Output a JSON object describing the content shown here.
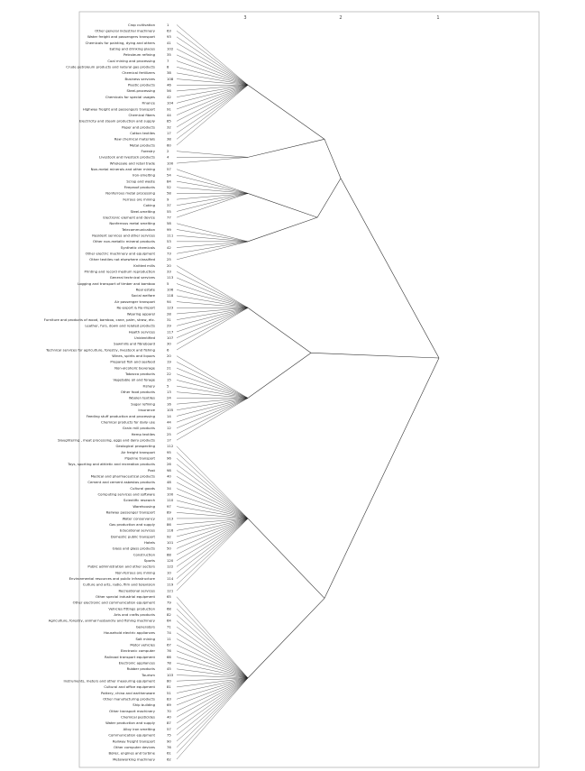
{
  "chart_data": {
    "type": "dendrogram",
    "title": "",
    "top_axis_ticks": [
      "3",
      "2",
      "1"
    ],
    "leaves": [
      {
        "label": "Crop cultivation",
        "code": "1",
        "cluster": 0
      },
      {
        "label": "Other general industrial machinery",
        "code": "63",
        "cluster": 0
      },
      {
        "label": "Water freight and passengers transport",
        "code": "93",
        "cluster": 0
      },
      {
        "label": "Chemicals for painting, dying and others",
        "code": "41",
        "cluster": 0
      },
      {
        "label": "Eating and drinking places",
        "code": "102",
        "cluster": 0
      },
      {
        "label": "Petroleum refining",
        "code": "35",
        "cluster": 0
      },
      {
        "label": "Coal mining and processing",
        "code": "7",
        "cluster": 0
      },
      {
        "label": "Crude petroleum products and natural gas products",
        "code": "8",
        "cluster": 0
      },
      {
        "label": "Chemical fertilizers",
        "code": "38",
        "cluster": 0
      },
      {
        "label": "Business services",
        "code": "108",
        "cluster": 0
      },
      {
        "label": "Plastic products",
        "code": "46",
        "cluster": 0
      },
      {
        "label": "Steel-processing",
        "code": "56",
        "cluster": 0
      },
      {
        "label": "Chemicals for special usages",
        "code": "42",
        "cluster": 0
      },
      {
        "label": "Finance",
        "code": "104",
        "cluster": 0
      },
      {
        "label": "Highway freight and passengers transport",
        "code": "91",
        "cluster": 0
      },
      {
        "label": "Chemical fibers",
        "code": "44",
        "cluster": 0
      },
      {
        "label": "Electricity and steam production and supply",
        "code": "85",
        "cluster": 0
      },
      {
        "label": "Paper and products",
        "code": "32",
        "cluster": 0
      },
      {
        "label": "Cotton textiles",
        "code": "17",
        "cluster": 0
      },
      {
        "label": "Raw chemical materials",
        "code": "38",
        "cluster": 0
      },
      {
        "label": "Metal products",
        "code": "60",
        "cluster": 0
      },
      {
        "label": "Forestry",
        "code": "2",
        "cluster": 1
      },
      {
        "label": "Livestock and livestock products",
        "code": "4",
        "cluster": 1
      },
      {
        "label": "Wholesale and retail trade",
        "code": "100",
        "cluster": 1
      },
      {
        "label": "Non-metal minerals and other mining",
        "code": "57",
        "cluster": 2
      },
      {
        "label": "Iron-smelting",
        "code": "54",
        "cluster": 2
      },
      {
        "label": "Scrap and waste",
        "code": "84",
        "cluster": 2
      },
      {
        "label": "Fireproof  products",
        "code": "52",
        "cluster": 2
      },
      {
        "label": "Nonferrous metal processing",
        "code": "58",
        "cluster": 2
      },
      {
        "label": "Ferrous ore mining",
        "code": "9",
        "cluster": 2
      },
      {
        "label": "Coking",
        "code": "37",
        "cluster": 2
      },
      {
        "label": "Steel-smelting",
        "code": "55",
        "cluster": 2
      },
      {
        "label": "Electronic element and device",
        "code": "77",
        "cluster": 2
      },
      {
        "label": "Nonferrous metal smelting",
        "code": "58",
        "cluster": 3
      },
      {
        "label": "Telecommunication",
        "code": "99",
        "cluster": 3
      },
      {
        "label": "Resident services and other services",
        "code": "111",
        "cluster": 3
      },
      {
        "label": "Other non-metallic mineral products",
        "code": "53",
        "cluster": 3
      },
      {
        "label": "Synthetic chemicals",
        "code": "42",
        "cluster": 3
      },
      {
        "label": "Other electric machinery and equipment",
        "code": "73",
        "cluster": 3
      },
      {
        "label": "Other textiles not elsewhere classified",
        "code": "25",
        "cluster": 3
      },
      {
        "label": "Knitted mills",
        "code": "20",
        "cluster": 4
      },
      {
        "label": "Printing and record medium reproduction",
        "code": "33",
        "cluster": 4
      },
      {
        "label": "General technical services",
        "code": "113",
        "cluster": 4
      },
      {
        "label": "Logging and transport of timber and bamboo",
        "code": "5",
        "cluster": 4
      },
      {
        "label": "Real estate",
        "code": "106",
        "cluster": 4
      },
      {
        "label": "Social welfare",
        "code": "118",
        "cluster": 4
      },
      {
        "label": "Air passenger transport",
        "code": "94",
        "cluster": 4
      },
      {
        "label": "Re-export & Re-import",
        "code": "123",
        "cluster": 4
      },
      {
        "label": "Wearing apparel",
        "code": "28",
        "cluster": 4
      },
      {
        "label": "Furniture and products of wood, bamboo, cane, palm, straw, etc.",
        "code": "31",
        "cluster": 4
      },
      {
        "label": "Leather, furs, down and related products",
        "code": "29",
        "cluster": 4
      },
      {
        "label": "Health services",
        "code": "117",
        "cluster": 4
      },
      {
        "label": "Unidentified",
        "code": "107",
        "cluster": 4
      },
      {
        "label": "Sawmills and fibreboard",
        "code": "30",
        "cluster": 4
      },
      {
        "label": "Technical services for agriculture, forestry, livestock and fishing",
        "code": "6",
        "cluster": 4
      },
      {
        "label": "Wines, spirits and liquors",
        "code": "20",
        "cluster": 5
      },
      {
        "label": "Prepared fish and seafood",
        "code": "19",
        "cluster": 5
      },
      {
        "label": "Non-alcoholic beverage",
        "code": "21",
        "cluster": 5
      },
      {
        "label": "Tobacco products",
        "code": "22",
        "cluster": 5
      },
      {
        "label": "Vegetable oil and forage",
        "code": "15",
        "cluster": 5
      },
      {
        "label": "Fishery",
        "code": "5",
        "cluster": 5
      },
      {
        "label": "Other food products",
        "code": "13",
        "cluster": 5
      },
      {
        "label": "Woolen textiles",
        "code": "24",
        "cluster": 5
      },
      {
        "label": "Sugar refining",
        "code": "16",
        "cluster": 5
      },
      {
        "label": "Insurance",
        "code": "105",
        "cluster": 5
      },
      {
        "label": "Feeding stuff production and processing",
        "code": "14",
        "cluster": 5
      },
      {
        "label": "Chemical products for daily use",
        "code": "44",
        "cluster": 5
      },
      {
        "label": "Grain mill products",
        "code": "12",
        "cluster": 5
      },
      {
        "label": "Hemp textiles",
        "code": "25",
        "cluster": 5
      },
      {
        "label": "Slaughtering , meat processing, eggs and dairy products",
        "code": "17",
        "cluster": 5
      },
      {
        "label": "Geological prospecting",
        "code": "112",
        "cluster": 6
      },
      {
        "label": "Air freight transport",
        "code": "95",
        "cluster": 6
      },
      {
        "label": "Pipeline transport",
        "code": "96",
        "cluster": 6
      },
      {
        "label": "Toys, sporting and athletic  and recreation products",
        "code": "26",
        "cluster": 6
      },
      {
        "label": "Post",
        "code": "98",
        "cluster": 6
      },
      {
        "label": "Medical and pharmaceutical products",
        "code": "40",
        "cluster": 6
      },
      {
        "label": "Cement and cement asbestos products",
        "code": "48",
        "cluster": 6
      },
      {
        "label": "Cultural goods",
        "code": "34",
        "cluster": 6
      },
      {
        "label": "Computing services and software",
        "code": "100",
        "cluster": 6
      },
      {
        "label": "Scientific research",
        "code": "110",
        "cluster": 6
      },
      {
        "label": "Warehousing",
        "code": "97",
        "cluster": 6
      },
      {
        "label": "Railway passenger transport",
        "code": "89",
        "cluster": 6
      },
      {
        "label": "Water conservancy",
        "code": "113",
        "cluster": 6
      },
      {
        "label": "Gas production and supply",
        "code": "86",
        "cluster": 6
      },
      {
        "label": "Educational services",
        "code": "116",
        "cluster": 6
      },
      {
        "label": "Domestic public transport",
        "code": "92",
        "cluster": 6
      },
      {
        "label": "Hotels",
        "code": "101",
        "cluster": 6
      },
      {
        "label": "Glass and glass products",
        "code": "50",
        "cluster": 6
      },
      {
        "label": "Construction",
        "code": "88",
        "cluster": 6
      },
      {
        "label": "Sports",
        "code": "120",
        "cluster": 6
      },
      {
        "label": "Public administration and other sectors",
        "code": "122",
        "cluster": 6
      },
      {
        "label": "Non-ferrous ore mining",
        "code": "10",
        "cluster": 6
      },
      {
        "label": "Environmental resources and public infrastructure",
        "code": "114",
        "cluster": 6
      },
      {
        "label": "Culture and arts, radio, film and television",
        "code": "119",
        "cluster": 6
      },
      {
        "label": "Recreational services",
        "code": "121",
        "cluster": 6
      },
      {
        "label": "Other special industrial equipment",
        "code": "65",
        "cluster": 7
      },
      {
        "label": "Other electronic and communication equipment",
        "code": "79",
        "cluster": 7
      },
      {
        "label": "Vehicles fittings production",
        "code": "68",
        "cluster": 7
      },
      {
        "label": "Arts and crafts products",
        "code": "82",
        "cluster": 7
      },
      {
        "label": "Agriculture, forestry, animal husbandry and fishing machinery",
        "code": "64",
        "cluster": 7
      },
      {
        "label": "Generators",
        "code": "71",
        "cluster": 7
      },
      {
        "label": "Household electric appliances",
        "code": "74",
        "cluster": 7
      },
      {
        "label": "Salt mining",
        "code": "11",
        "cluster": 7
      },
      {
        "label": "Motor vehicles",
        "code": "67",
        "cluster": 7
      },
      {
        "label": "Electronic computer",
        "code": "76",
        "cluster": 7
      },
      {
        "label": "Railroad transport equipment",
        "code": "66",
        "cluster": 7
      },
      {
        "label": "Electronic appliances",
        "code": "78",
        "cluster": 7
      },
      {
        "label": "Rubber products",
        "code": "45",
        "cluster": 7
      },
      {
        "label": "Tourism",
        "code": "103",
        "cluster": 7
      },
      {
        "label": "Instruments, meters and other measuring equipment",
        "code": "80",
        "cluster": 7
      },
      {
        "label": "Cultural and office equipment",
        "code": "81",
        "cluster": 7
      },
      {
        "label": "Pottery, china and earthenware",
        "code": "51",
        "cluster": 7
      },
      {
        "label": "Other manufacturing  products",
        "code": "83",
        "cluster": 7
      },
      {
        "label": "Ship building",
        "code": "69",
        "cluster": 7
      },
      {
        "label": "Other transport machinery",
        "code": "70",
        "cluster": 7
      },
      {
        "label": "Chemical pesticides",
        "code": "40",
        "cluster": 7
      },
      {
        "label": "Water production and supply",
        "code": "87",
        "cluster": 7
      },
      {
        "label": "Alloy iron smelting",
        "code": "57",
        "cluster": 7
      },
      {
        "label": "Communication equipment",
        "code": "75",
        "cluster": 7
      },
      {
        "label": "Railway freight transport",
        "code": "90",
        "cluster": 7
      },
      {
        "label": "Other computer devices",
        "code": "76",
        "cluster": 7
      },
      {
        "label": "Boiler, engines and turbine",
        "code": "61",
        "cluster": 7
      },
      {
        "label": "Metalworking machinery",
        "code": "62",
        "cluster": 7
      }
    ]
  }
}
